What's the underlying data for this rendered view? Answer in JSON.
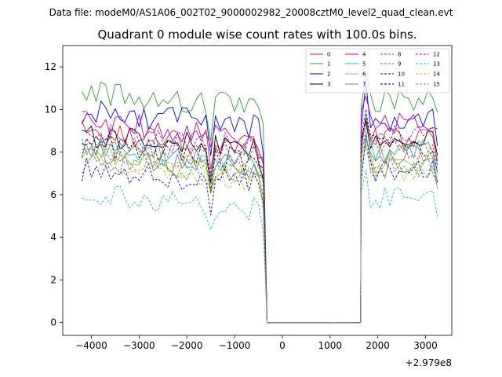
{
  "suptitle": "Data file: modeM0/AS1A06_002T02_9000002982_20008cztM0_level2_quad_clean.evt",
  "chart_data": {
    "type": "line",
    "title": "Quadrant 0 module wise count rates with 100.0s bins.",
    "xlabel": "",
    "ylabel": "",
    "x_offset_label": "+2.979e8",
    "xlim": [
      -4600,
      3550
    ],
    "ylim": [
      -0.6,
      13
    ],
    "x_ticks": [
      -4000,
      -3000,
      -2000,
      -1000,
      0,
      1000,
      2000,
      3000
    ],
    "x_tick_labels": [
      "−4000",
      "−3000",
      "−2000",
      "−1000",
      "0",
      "1000",
      "2000",
      "3000"
    ],
    "y_ticks": [
      0,
      2,
      4,
      6,
      8,
      10,
      12
    ],
    "y_tick_labels": [
      "0",
      "2",
      "4",
      "6",
      "8",
      "10",
      "12"
    ],
    "legend_position": "top-right",
    "gap": {
      "x_start": -320,
      "x_end": 1640,
      "value": 0.0
    },
    "segment1": {
      "x_start": -4200,
      "step": 100,
      "count": 39
    },
    "segment2": {
      "x_start": 1650,
      "step": 100,
      "count": 17
    },
    "series": [
      {
        "name": "0",
        "color": "#d62728",
        "dash": "solid",
        "seg1_mean": 8.6,
        "seg2_mean": 8.6
      },
      {
        "name": "1",
        "color": "#2ca02c",
        "dash": "solid",
        "seg1_mean": 10.4,
        "seg2_mean": 10.4
      },
      {
        "name": "2",
        "color": "#0000ff",
        "dash": "solid",
        "seg1_mean": 9.5,
        "seg2_mean": 9.5
      },
      {
        "name": "3",
        "color": "#000000",
        "dash": "solid",
        "seg1_mean": 8.4,
        "seg2_mean": 8.6
      },
      {
        "name": "4",
        "color": "#bf00bf",
        "dash": "solid",
        "seg1_mean": 9.0,
        "seg2_mean": 9.4
      },
      {
        "name": "5",
        "color": "#17becf",
        "dash": "solid",
        "seg1_mean": 7.8,
        "seg2_mean": 8.0
      },
      {
        "name": "6",
        "color": "#bcbd22",
        "dash": "solid",
        "seg1_mean": 7.3,
        "seg2_mean": 7.5
      },
      {
        "name": "7",
        "color": "#7f7f7f",
        "dash": "solid",
        "seg1_mean": 7.6,
        "seg2_mean": 7.8
      },
      {
        "name": "8",
        "color": "#d62728",
        "dash": "dashed",
        "seg1_mean": 8.1,
        "seg2_mean": 8.2
      },
      {
        "name": "9",
        "color": "#2ca02c",
        "dash": "dashed",
        "seg1_mean": 7.1,
        "seg2_mean": 7.3
      },
      {
        "name": "10",
        "color": "#0000ff",
        "dash": "dashed",
        "seg1_mean": 6.8,
        "seg2_mean": 7.1
      },
      {
        "name": "11",
        "color": "#000000",
        "dash": "dashed",
        "seg1_mean": 7.9,
        "seg2_mean": 8.3
      },
      {
        "name": "12",
        "color": "#bf00bf",
        "dash": "dashed",
        "seg1_mean": 8.5,
        "seg2_mean": 8.7
      },
      {
        "name": "13",
        "color": "#17becf",
        "dash": "dashed",
        "seg1_mean": 5.6,
        "seg2_mean": 5.9
      },
      {
        "name": "14",
        "color": "#bcbd22",
        "dash": "dashed",
        "seg1_mean": 7.0,
        "seg2_mean": 7.2
      },
      {
        "name": "15",
        "color": "#7f7f7f",
        "dash": "dashed",
        "seg1_mean": 7.3,
        "seg2_mean": 7.3
      }
    ]
  }
}
